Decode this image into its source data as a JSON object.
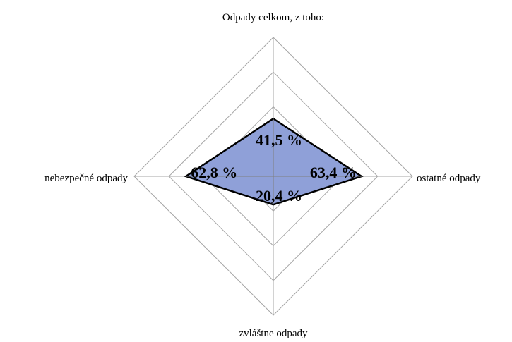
{
  "chart_data": {
    "type": "radar",
    "title": "",
    "axes": [
      "Odpady celkom, z toho:",
      "ostatné odpady",
      "zvláštne odpady",
      "nebezpečné odpady"
    ],
    "series": [
      {
        "values": [
          41.5,
          63.4,
          20.4,
          62.8
        ],
        "labels": [
          "41,5 %",
          "63,4 %",
          "20,4 %",
          "62,8 %"
        ],
        "fill": "#8fa0d8",
        "stroke": "#000000"
      }
    ],
    "rmax": 100,
    "rings": [
      25,
      50,
      75,
      100
    ],
    "grid": true,
    "legend": false
  }
}
